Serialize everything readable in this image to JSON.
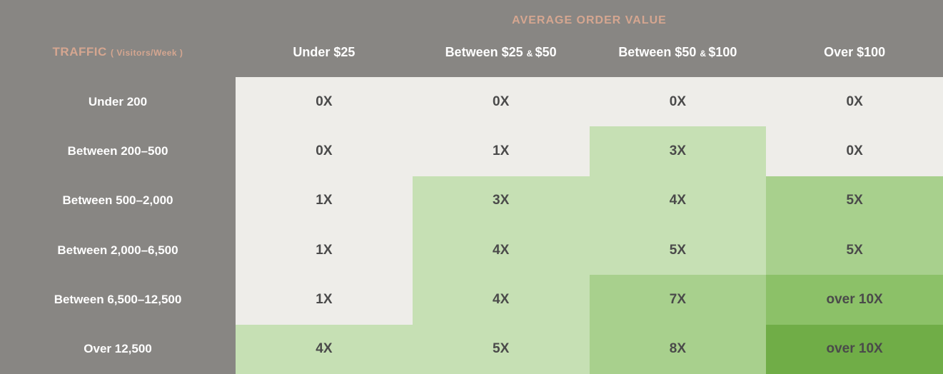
{
  "type": "heatmap-table",
  "colors": {
    "header_bg": "#888683",
    "accent_text": "#d5a690",
    "white": "#ffffff",
    "cell_text": "#4a4a4a",
    "shades": {
      "0": "#eeede9",
      "1": "#c6e0b4",
      "2": "#a8d08d",
      "3": "#8cc168",
      "4": "#70ad47"
    }
  },
  "super_header": "AVERAGE ORDER VALUE",
  "row_axis_label": "TRAFFIC",
  "row_axis_sublabel": "Visitors/Week",
  "columns": [
    "Under $25",
    "Between $25 & $50",
    "Between $50 & $100",
    "Over $100"
  ],
  "rows": [
    {
      "label": "Under 200",
      "cells": [
        {
          "value": "0X",
          "shade": 0
        },
        {
          "value": "0X",
          "shade": 0
        },
        {
          "value": "0X",
          "shade": 0
        },
        {
          "value": "0X",
          "shade": 0
        }
      ]
    },
    {
      "label": "Between 200–500",
      "cells": [
        {
          "value": "0X",
          "shade": 0
        },
        {
          "value": "1X",
          "shade": 0
        },
        {
          "value": "3X",
          "shade": 1
        },
        {
          "value": "0X",
          "shade": 0
        }
      ]
    },
    {
      "label": "Between 500–2,000",
      "cells": [
        {
          "value": "1X",
          "shade": 0
        },
        {
          "value": "3X",
          "shade": 1
        },
        {
          "value": "4X",
          "shade": 1
        },
        {
          "value": "5X",
          "shade": 2
        }
      ]
    },
    {
      "label": "Between 2,000–6,500",
      "cells": [
        {
          "value": "1X",
          "shade": 0
        },
        {
          "value": "4X",
          "shade": 1
        },
        {
          "value": "5X",
          "shade": 1
        },
        {
          "value": "5X",
          "shade": 2
        }
      ]
    },
    {
      "label": "Between 6,500–12,500",
      "cells": [
        {
          "value": "1X",
          "shade": 0
        },
        {
          "value": "4X",
          "shade": 1
        },
        {
          "value": "7X",
          "shade": 2
        },
        {
          "value": "over 10X",
          "shade": 3
        }
      ]
    },
    {
      "label": "Over 12,500",
      "cells": [
        {
          "value": "4X",
          "shade": 1
        },
        {
          "value": "5X",
          "shade": 1
        },
        {
          "value": "8X",
          "shade": 2
        },
        {
          "value": "over 10X",
          "shade": 4
        }
      ]
    }
  ]
}
